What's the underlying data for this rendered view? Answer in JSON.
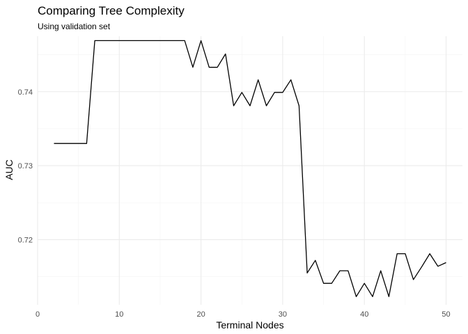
{
  "chart_data": {
    "type": "line",
    "title": "Comparing Tree Complexity",
    "subtitle": "Using validation set",
    "xlabel": "Terminal Nodes",
    "ylabel": "AUC",
    "xlim": [
      0,
      52
    ],
    "ylim": [
      0.7112,
      0.7475
    ],
    "x_ticks": [
      0,
      10,
      20,
      30,
      40,
      50
    ],
    "x_tick_labels": [
      "0",
      "10",
      "20",
      "30",
      "40",
      "50"
    ],
    "y_ticks": [
      0.72,
      0.73,
      0.74
    ],
    "y_tick_labels": [
      "0.72",
      "0.73",
      "0.74"
    ],
    "grid": true,
    "x": [
      2,
      3,
      4,
      5,
      6,
      7,
      8,
      9,
      10,
      11,
      12,
      13,
      14,
      15,
      16,
      17,
      18,
      19,
      20,
      21,
      22,
      23,
      24,
      25,
      26,
      27,
      28,
      29,
      30,
      31,
      32,
      33,
      34,
      35,
      36,
      37,
      38,
      39,
      40,
      41,
      42,
      43,
      44,
      45,
      46,
      47,
      48,
      49,
      50
    ],
    "y": [
      0.733,
      0.733,
      0.733,
      0.733,
      0.733,
      0.7469,
      0.7469,
      0.7469,
      0.7469,
      0.7469,
      0.7469,
      0.7469,
      0.7469,
      0.7469,
      0.7469,
      0.7469,
      0.7469,
      0.7433,
      0.7469,
      0.7433,
      0.7433,
      0.7451,
      0.7381,
      0.7399,
      0.7381,
      0.7416,
      0.7381,
      0.7399,
      0.7399,
      0.7416,
      0.7381,
      0.7155,
      0.7172,
      0.7141,
      0.7141,
      0.7158,
      0.7158,
      0.7123,
      0.7141,
      0.7123,
      0.7158,
      0.7123,
      0.7181,
      0.7181,
      0.7146,
      0.7163,
      0.7181,
      0.7164,
      0.7169
    ]
  }
}
